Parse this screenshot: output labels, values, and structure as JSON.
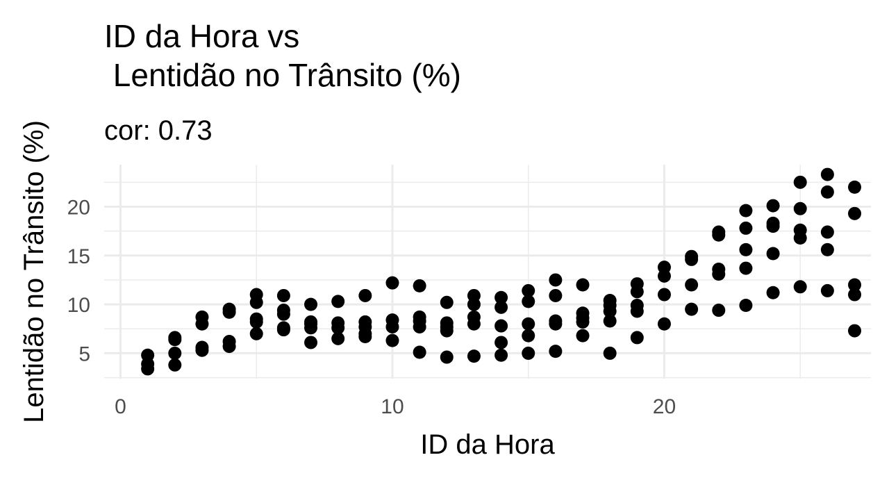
{
  "chart_data": {
    "type": "scatter",
    "title": "ID da Hora vs\n Lentidão no Trânsito (%)",
    "subtitle": "cor: 0.73",
    "xlabel": "ID da Hora",
    "ylabel": "Lentidão no Trânsito (%)",
    "xlim": [
      -0.6,
      27.6
    ],
    "ylim": [
      2.4,
      24.3
    ],
    "x_ticks": [
      0,
      10,
      20
    ],
    "y_ticks": [
      5,
      10,
      15,
      20
    ],
    "grid": true,
    "point_color": "#000000",
    "points": [
      [
        1,
        3.4
      ],
      [
        1,
        3.9
      ],
      [
        1,
        4.8
      ],
      [
        2,
        3.8
      ],
      [
        2,
        5.0
      ],
      [
        2,
        6.4
      ],
      [
        2,
        6.6
      ],
      [
        3,
        5.3
      ],
      [
        3,
        5.6
      ],
      [
        3,
        8.0
      ],
      [
        3,
        8.7
      ],
      [
        4,
        5.7
      ],
      [
        4,
        6.2
      ],
      [
        4,
        9.2
      ],
      [
        4,
        9.5
      ],
      [
        5,
        7.0
      ],
      [
        5,
        8.2
      ],
      [
        5,
        8.5
      ],
      [
        5,
        10.2
      ],
      [
        5,
        11.0
      ],
      [
        6,
        7.4
      ],
      [
        6,
        7.6
      ],
      [
        6,
        9.0
      ],
      [
        6,
        9.4
      ],
      [
        6,
        10.9
      ],
      [
        7,
        6.1
      ],
      [
        7,
        7.6
      ],
      [
        7,
        8.0
      ],
      [
        7,
        8.2
      ],
      [
        7,
        10.0
      ],
      [
        8,
        6.5
      ],
      [
        8,
        7.6
      ],
      [
        8,
        8.1
      ],
      [
        8,
        10.3
      ],
      [
        9,
        6.7
      ],
      [
        9,
        7.0
      ],
      [
        9,
        7.7
      ],
      [
        9,
        8.2
      ],
      [
        9,
        10.9
      ],
      [
        10,
        6.3
      ],
      [
        10,
        7.7
      ],
      [
        10,
        8.4
      ],
      [
        10,
        12.2
      ],
      [
        11,
        5.1
      ],
      [
        11,
        7.7
      ],
      [
        11,
        8.3
      ],
      [
        11,
        8.7
      ],
      [
        11,
        11.9
      ],
      [
        12,
        4.6
      ],
      [
        12,
        7.3
      ],
      [
        12,
        7.7
      ],
      [
        12,
        8.1
      ],
      [
        12,
        10.2
      ],
      [
        13,
        4.7
      ],
      [
        13,
        8.0
      ],
      [
        13,
        8.7
      ],
      [
        13,
        10.0
      ],
      [
        13,
        10.9
      ],
      [
        14,
        4.8
      ],
      [
        14,
        6.1
      ],
      [
        14,
        7.8
      ],
      [
        14,
        9.7
      ],
      [
        14,
        10.7
      ],
      [
        15,
        5.0
      ],
      [
        15,
        6.8
      ],
      [
        15,
        8.0
      ],
      [
        15,
        10.3
      ],
      [
        15,
        11.4
      ],
      [
        16,
        5.2
      ],
      [
        16,
        8.0
      ],
      [
        16,
        8.3
      ],
      [
        16,
        10.9
      ],
      [
        16,
        12.5
      ],
      [
        17,
        6.8
      ],
      [
        17,
        8.2
      ],
      [
        17,
        8.6
      ],
      [
        17,
        9.1
      ],
      [
        17,
        12.0
      ],
      [
        18,
        5.0
      ],
      [
        18,
        8.3
      ],
      [
        18,
        9.3
      ],
      [
        18,
        9.9
      ],
      [
        18,
        10.4
      ],
      [
        19,
        6.6
      ],
      [
        19,
        9.3
      ],
      [
        19,
        9.9
      ],
      [
        19,
        11.3
      ],
      [
        19,
        12.1
      ],
      [
        20,
        8.0
      ],
      [
        20,
        11.0
      ],
      [
        20,
        12.9
      ],
      [
        20,
        13.8
      ],
      [
        21,
        9.5
      ],
      [
        21,
        12.0
      ],
      [
        21,
        14.6
      ],
      [
        21,
        14.9
      ],
      [
        22,
        9.4
      ],
      [
        22,
        13.1
      ],
      [
        22,
        13.6
      ],
      [
        22,
        17.1
      ],
      [
        22,
        17.4
      ],
      [
        23,
        9.9
      ],
      [
        23,
        13.7
      ],
      [
        23,
        15.6
      ],
      [
        23,
        17.8
      ],
      [
        23,
        19.6
      ],
      [
        24,
        11.2
      ],
      [
        24,
        15.2
      ],
      [
        24,
        18.0
      ],
      [
        24,
        18.3
      ],
      [
        24,
        20.1
      ],
      [
        25,
        11.8
      ],
      [
        25,
        16.8
      ],
      [
        25,
        17.6
      ],
      [
        25,
        19.8
      ],
      [
        25,
        22.5
      ],
      [
        26,
        11.4
      ],
      [
        26,
        15.6
      ],
      [
        26,
        17.4
      ],
      [
        26,
        21.5
      ],
      [
        26,
        23.3
      ],
      [
        27,
        7.3
      ],
      [
        27,
        11.0
      ],
      [
        27,
        12.0
      ],
      [
        27,
        19.3
      ],
      [
        27,
        22.0
      ]
    ]
  }
}
